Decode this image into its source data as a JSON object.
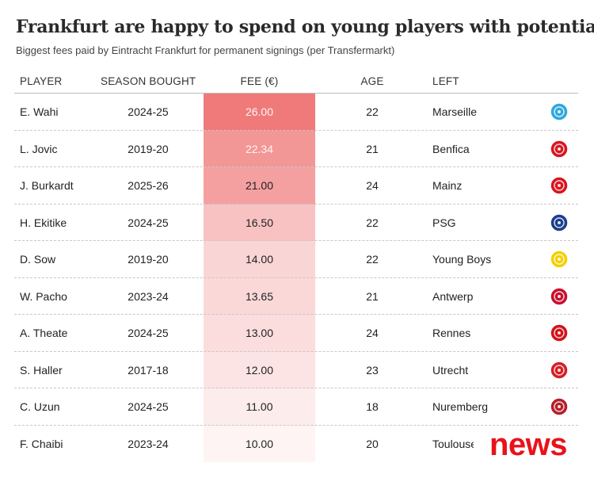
{
  "title": "Frankfurt are happy to spend on young players with potential",
  "subtitle": "Biggest fees paid by Eintracht Frankfurt for permanent signings (per Transfermarkt)",
  "watermark": "news",
  "chart_data": {
    "type": "table",
    "columns": [
      "PLAYER",
      "SEASON BOUGHT",
      "FEE (€)",
      "AGE",
      "LEFT"
    ],
    "rows": [
      {
        "player": "E. Wahi",
        "season": "2024-25",
        "fee": "26.00",
        "age": "22",
        "left": "Marseille",
        "badge_icon": "marseille-crest-icon",
        "badge_color": "#2fa8dd"
      },
      {
        "player": "L. Jovic",
        "season": "2019-20",
        "fee": "22.34",
        "age": "21",
        "left": "Benfica",
        "badge_icon": "benfica-crest-icon",
        "badge_color": "#d6171f"
      },
      {
        "player": "J. Burkardt",
        "season": "2025-26",
        "fee": "21.00",
        "age": "24",
        "left": "Mainz",
        "badge_icon": "mainz-crest-icon",
        "badge_color": "#d9141d"
      },
      {
        "player": "H. Ekitike",
        "season": "2024-25",
        "fee": "16.50",
        "age": "22",
        "left": "PSG",
        "badge_icon": "psg-crest-icon",
        "badge_color": "#1c3f8b"
      },
      {
        "player": "D. Sow",
        "season": "2019-20",
        "fee": "14.00",
        "age": "22",
        "left": "Young Boys",
        "badge_icon": "young-boys-crest-icon",
        "badge_color": "#f4d000"
      },
      {
        "player": "W. Pacho",
        "season": "2023-24",
        "fee": "13.65",
        "age": "21",
        "left": "Antwerp",
        "badge_icon": "antwerp-crest-icon",
        "badge_color": "#c8102e"
      },
      {
        "player": "A. Theate",
        "season": "2024-25",
        "fee": "13.00",
        "age": "24",
        "left": "Rennes",
        "badge_icon": "rennes-crest-icon",
        "badge_color": "#d4121a"
      },
      {
        "player": "S. Haller",
        "season": "2017-18",
        "fee": "12.00",
        "age": "23",
        "left": "Utrecht",
        "badge_icon": "utrecht-crest-icon",
        "badge_color": "#d51f26"
      },
      {
        "player": "C. Uzun",
        "season": "2024-25",
        "fee": "11.00",
        "age": "18",
        "left": "Nuremberg",
        "badge_icon": "nuremberg-crest-icon",
        "badge_color": "#b51f2b"
      },
      {
        "player": "F. Chaibi",
        "season": "2023-24",
        "fee": "10.00",
        "age": "20",
        "left": "Toulouse",
        "badge_icon": "toulouse-crest-icon",
        "badge_color": "#5b2d8e"
      }
    ],
    "fee_color_scale": {
      "low": "#ffffff",
      "high": "#f07a7a"
    }
  }
}
